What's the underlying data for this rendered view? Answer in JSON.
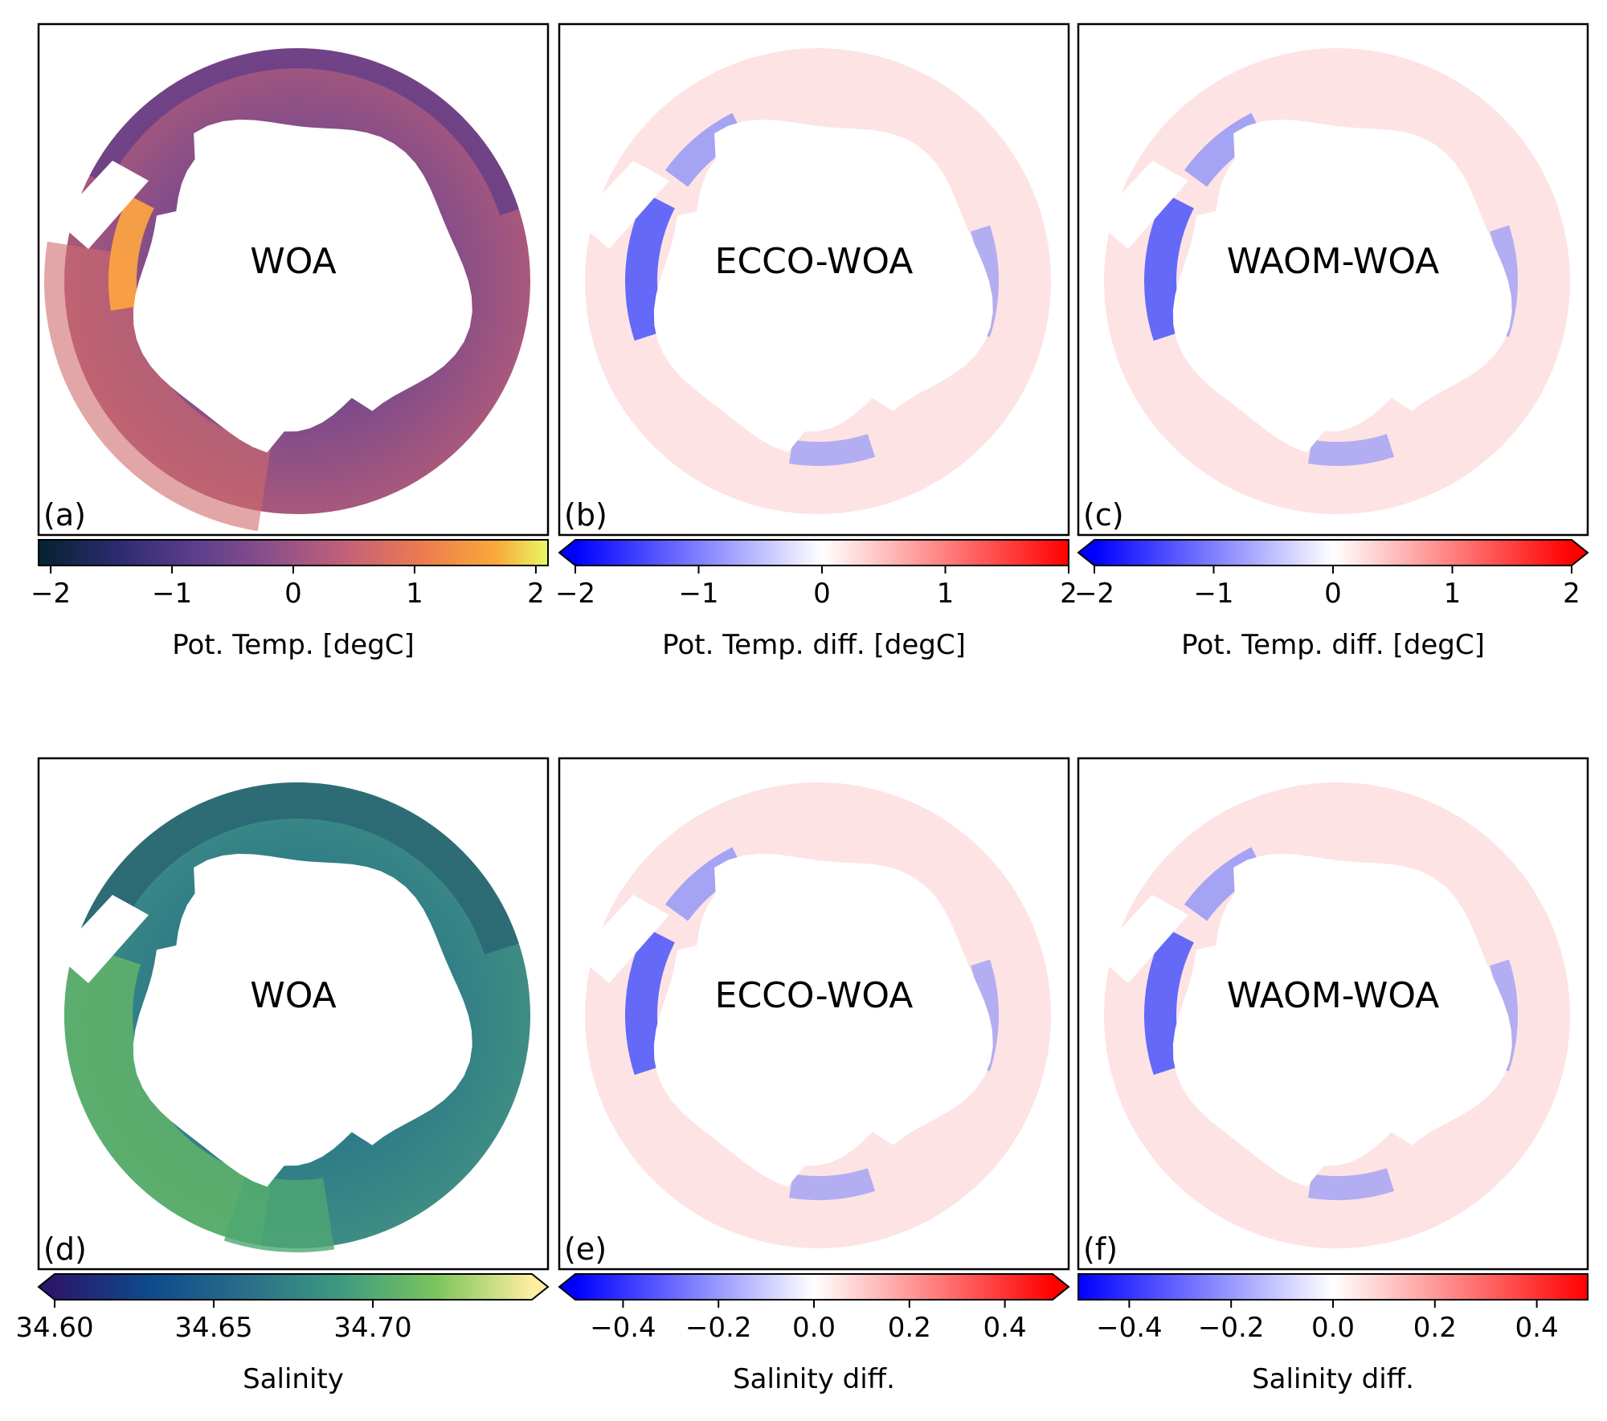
{
  "chart_data": [
    {
      "type": "heatmap",
      "panel": "(a)",
      "title": "WOA",
      "colorbar_label": "Pot. Temp. [degC]",
      "colormap": "thermal",
      "ticks": [
        -2,
        -1,
        0,
        1,
        2
      ],
      "tick_labels": [
        "−2",
        "−1",
        "0",
        "1",
        "2"
      ],
      "clim": [
        -2.1,
        2.1
      ],
      "extend": "neither"
    },
    {
      "type": "heatmap",
      "panel": "(b)",
      "title": "ECCO-WOA",
      "colorbar_label": "Pot. Temp. diff. [degC]",
      "colormap": "bwr",
      "ticks": [
        -2,
        -1,
        0,
        1,
        2
      ],
      "tick_labels": [
        "−2",
        "−1",
        "0",
        "1",
        "2"
      ],
      "clim": [
        -2,
        2
      ],
      "extend": "min"
    },
    {
      "type": "heatmap",
      "panel": "(c)",
      "title": "WAOM-WOA",
      "colorbar_label": "Pot. Temp. diff. [degC]",
      "colormap": "bwr",
      "ticks": [
        -2,
        -1,
        0,
        1,
        2
      ],
      "tick_labels": [
        "−2",
        "−1",
        "0",
        "1",
        "2"
      ],
      "clim": [
        -2,
        2
      ],
      "extend": "both"
    },
    {
      "type": "heatmap",
      "panel": "(d)",
      "title": "WOA",
      "colorbar_label": "Salinity",
      "colormap": "haline",
      "ticks": [
        34.6,
        34.65,
        34.7
      ],
      "tick_labels": [
        "34.60",
        "34.65",
        "34.70"
      ],
      "clim": [
        34.6,
        34.75
      ],
      "extend": "both"
    },
    {
      "type": "heatmap",
      "panel": "(e)",
      "title": "ECCO-WOA",
      "colorbar_label": "Salinity diff.",
      "colormap": "bwr",
      "ticks": [
        -0.4,
        -0.2,
        0,
        0.2,
        0.4
      ],
      "tick_labels": [
        "−0.4",
        "−0.2",
        "0.0",
        "0.2",
        "0.4"
      ],
      "clim": [
        -0.5,
        0.5
      ],
      "extend": "both"
    },
    {
      "type": "heatmap",
      "panel": "(f)",
      "title": "WAOM-WOA",
      "colorbar_label": "Salinity diff.",
      "colormap": "bwr",
      "ticks": [
        -0.4,
        -0.2,
        0,
        0.2,
        0.4
      ],
      "tick_labels": [
        "−0.4",
        "−0.2",
        "0.0",
        "0.2",
        "0.4"
      ],
      "clim": [
        -0.5,
        0.5
      ],
      "extend": "neither"
    }
  ]
}
